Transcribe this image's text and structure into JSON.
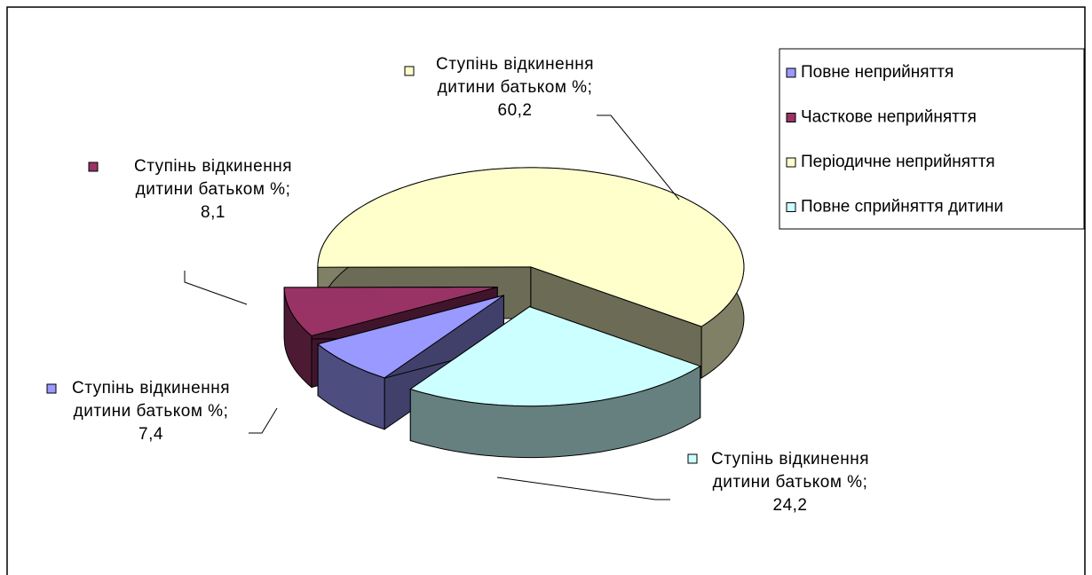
{
  "chart_data": {
    "type": "pie3d",
    "categories": [
      "Повне неприйняття",
      "Часткове неприйняття",
      "Періодичне неприйняття",
      "Повне сприйняття дитини"
    ],
    "values": [
      7.4,
      8.1,
      60.2,
      24.2
    ],
    "value_labels": [
      "Ступінь відкинення дитини батьком %; 7,4",
      "Ступінь відкинення дитини батьком %; 8,1",
      "Ступінь відкинення дитини батьком %; 60,2",
      "Ступінь відкинення дитини батьком %; 24,2"
    ],
    "colors": [
      "#9999ff",
      "#993366",
      "#ffffcc",
      "#ccffff"
    ],
    "legend": "right"
  }
}
